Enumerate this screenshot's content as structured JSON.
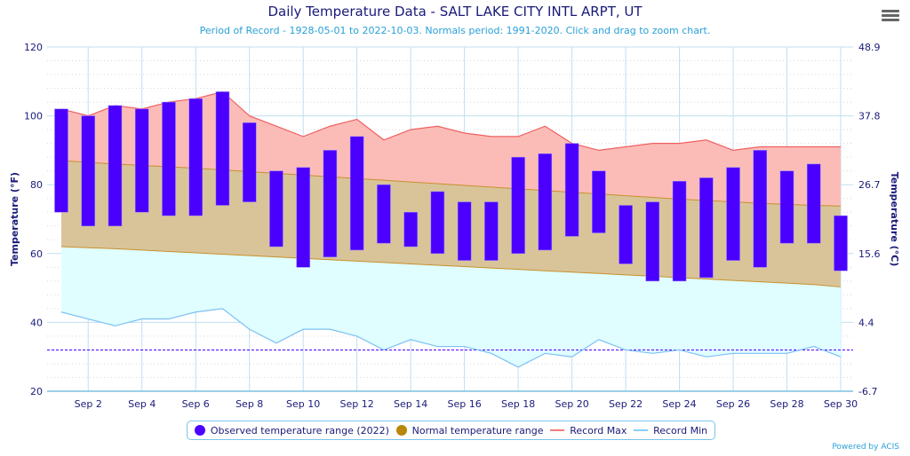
{
  "title": "Daily Temperature Data - SALT LAKE CITY INTL ARPT, UT",
  "subtitle": "Period of Record - 1928-05-01 to 2022-10-03. Normals period: 1991-2020. Click and drag to zoom chart.",
  "menu_icon": "hamburger-menu-icon",
  "credit": "Powered by ACIS",
  "legend": [
    {
      "label": "Observed temperature range (2022)",
      "color": "#4b00ff",
      "kind": "dot"
    },
    {
      "label": "Normal temperature range",
      "color": "#b8860b",
      "kind": "dot"
    },
    {
      "label": "Record Max",
      "color": "#f08080",
      "kind": "line"
    },
    {
      "label": "Record Min",
      "color": "#87cefa",
      "kind": "line"
    }
  ],
  "colors": {
    "observed": "#4b00ff",
    "normal_fill": "#d9c49a",
    "normal_line": "#c8902a",
    "record_max_fill": "#fbbcb8",
    "record_max_line": "#f06060",
    "record_min_fill": "#e0feff",
    "record_min_line": "#7cc0f4",
    "freezing_line": "#4b00ff",
    "axis_text": "#1a1a7a",
    "grid": "#c0dff0"
  },
  "chart_data": {
    "type": "bar",
    "title": "Daily Temperature Data - SALT LAKE CITY INTL ARPT, UT",
    "xlabel": "",
    "ylabel": "Temperature (°F)",
    "ylabel_right": "Temperature (°C)",
    "ylim": [
      20,
      120
    ],
    "yticks": [
      20,
      40,
      60,
      80,
      100,
      120
    ],
    "yticks_right": [
      "-6.7",
      "4.4",
      "15.6",
      "26.7",
      "37.8",
      "48.9"
    ],
    "xticks": [
      "Sep 2",
      "Sep 4",
      "Sep 6",
      "Sep 8",
      "Sep 10",
      "Sep 12",
      "Sep 14",
      "Sep 16",
      "Sep 18",
      "Sep 20",
      "Sep 22",
      "Sep 24",
      "Sep 26",
      "Sep 28",
      "Sep 30"
    ],
    "xtick_days": [
      2,
      4,
      6,
      8,
      10,
      12,
      14,
      16,
      18,
      20,
      22,
      24,
      26,
      28,
      30
    ],
    "days": [
      1,
      2,
      3,
      4,
      5,
      6,
      7,
      8,
      9,
      10,
      11,
      12,
      13,
      14,
      15,
      16,
      17,
      18,
      19,
      20,
      21,
      22,
      23,
      24,
      25,
      26,
      27,
      28,
      29,
      30
    ],
    "freezing_line": 32,
    "grid": true,
    "legend_position": "bottom-center",
    "series": [
      {
        "name": "Observed temperature range (2022) high",
        "values": [
          102,
          100,
          103,
          102,
          104,
          105,
          107,
          98,
          84,
          85,
          90,
          94,
          80,
          72,
          78,
          75,
          75,
          88,
          89,
          92,
          84,
          74,
          75,
          81,
          82,
          85,
          90,
          84,
          86,
          71
        ]
      },
      {
        "name": "Observed temperature range (2022) low",
        "values": [
          72,
          68,
          68,
          72,
          71,
          71,
          74,
          75,
          62,
          56,
          59,
          61,
          63,
          62,
          60,
          58,
          58,
          60,
          61,
          65,
          66,
          57,
          52,
          52,
          53,
          58,
          56,
          63,
          63,
          55
        ]
      },
      {
        "name": "Normal high",
        "values": [
          87,
          86.5,
          86,
          85.6,
          85.2,
          84.8,
          84.3,
          83.8,
          83.3,
          82.8,
          82.3,
          81.8,
          81.3,
          80.8,
          80.3,
          79.8,
          79.3,
          78.8,
          78.3,
          77.8,
          77.3,
          76.8,
          76.3,
          75.8,
          75.4,
          75,
          74.6,
          74.3,
          74,
          73.8
        ]
      },
      {
        "name": "Normal low",
        "values": [
          62,
          61.7,
          61.4,
          61,
          60.6,
          60.2,
          59.8,
          59.4,
          59,
          58.6,
          58.2,
          57.8,
          57.4,
          57,
          56.6,
          56.2,
          55.8,
          55.4,
          55,
          54.6,
          54.2,
          53.8,
          53.4,
          53,
          52.6,
          52.2,
          51.8,
          51.4,
          51,
          50.3
        ]
      },
      {
        "name": "Record Max",
        "values": [
          102,
          100,
          103,
          102,
          104,
          105,
          107,
          100,
          97,
          94,
          97,
          99,
          93,
          96,
          97,
          95,
          94,
          94,
          97,
          92,
          90,
          91,
          92,
          92,
          93,
          90,
          91,
          91,
          91,
          91
        ]
      },
      {
        "name": "Record Min",
        "values": [
          43,
          41,
          39,
          41,
          41,
          43,
          44,
          38,
          34,
          38,
          38,
          36,
          32,
          35,
          33,
          33,
          31,
          27,
          31,
          30,
          35,
          32,
          31,
          32,
          30,
          31,
          31,
          31,
          33,
          30
        ]
      }
    ]
  }
}
